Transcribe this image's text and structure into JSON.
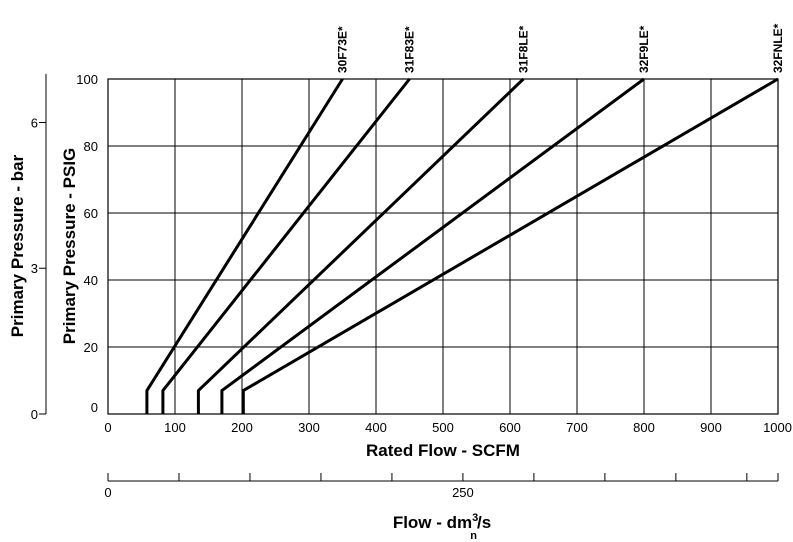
{
  "chart_data": {
    "type": "line",
    "xlabel": "Rated Flow - SCFM",
    "ylabel": "Primary Pressure - PSIG",
    "xlim": [
      0,
      1000
    ],
    "ylim": [
      0,
      100
    ],
    "x_ticks": [
      "0",
      "100",
      "200",
      "300",
      "400",
      "500",
      "600",
      "700",
      "800",
      "900",
      "1000"
    ],
    "y_ticks": [
      "0",
      "20",
      "40",
      "60",
      "80",
      "100"
    ],
    "grid": true,
    "series": [
      {
        "name": "30F73E*",
        "x": [
          58,
          58,
          350
        ],
        "y": [
          0,
          7,
          100
        ]
      },
      {
        "name": "31F83E*",
        "x": [
          82,
          82,
          450
        ],
        "y": [
          0,
          7,
          100
        ]
      },
      {
        "name": "31F8LE*",
        "x": [
          135,
          135,
          620
        ],
        "y": [
          0,
          7,
          100
        ]
      },
      {
        "name": "32F9LE*",
        "x": [
          170,
          170,
          800
        ],
        "y": [
          0,
          7,
          100
        ]
      },
      {
        "name": "32FNLE*",
        "x": [
          202,
          202,
          1000
        ],
        "y": [
          0,
          7,
          100
        ]
      }
    ],
    "secondary_y": {
      "label": "Primary Pressure - bar",
      "ticks": [
        {
          "value": 0,
          "label": "0"
        },
        {
          "value": 3,
          "label": "3"
        },
        {
          "value": 6,
          "label": "6"
        }
      ],
      "psig_per_unit": 14.5038
    },
    "secondary_x": {
      "label_prefix": "Flow - dm",
      "label_sup": "3",
      "label_suffix": "/s",
      "label_sub": "n",
      "ticks": [
        {
          "value": 0,
          "label": "0"
        },
        {
          "value": 50,
          "label": ""
        },
        {
          "value": 100,
          "label": ""
        },
        {
          "value": 150,
          "label": ""
        },
        {
          "value": 200,
          "label": ""
        },
        {
          "value": 250,
          "label": "250"
        },
        {
          "value": 300,
          "label": ""
        },
        {
          "value": 350,
          "label": ""
        },
        {
          "value": 400,
          "label": ""
        },
        {
          "value": 450,
          "label": ""
        }
      ],
      "scfm_per_unit": 2.1189
    }
  }
}
